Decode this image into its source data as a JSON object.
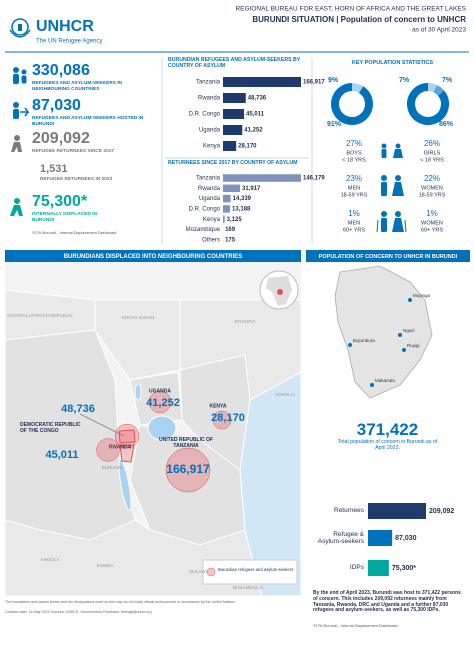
{
  "header": {
    "org": "UNHCR",
    "tagline": "The UN Refugee Agency",
    "bureau": "REGIONAL BUREAU FOR EAST, HORN OF AFRICA AND THE GREAT LAKES",
    "title": "BURUNDI SITUATION | Population of concern to UNHCR",
    "date": "as of 30 April 2023"
  },
  "kpis": [
    {
      "value": "330,086",
      "label": "REFUGEES AND ASYLUM-SEEKERS IN NEIGHBOURING COUNTRIES"
    },
    {
      "value": "87,030",
      "label": "REFUGEES AND ASYLUM-SEEKERS HOSTED IN BURUNDI"
    },
    {
      "value": "209,092",
      "label": "REFUGEE RETURNEES SINCE 2017"
    },
    {
      "value": "1,531",
      "label": "REFUGEE RETURNEES IN 2023"
    },
    {
      "value": "75,300*",
      "label": "INTERNALLY DISPLACED IN BURUNDI",
      "note": "*DTM Burundi – Internal Displacement Dashboard"
    }
  ],
  "asylum_chart": {
    "title": "BURUNDIAN REFUGEES AND ASYLUM-SEEKERS BY COUNTRY OF ASYLUM",
    "color": "#1f3a6e",
    "categories": [
      "Tanzania",
      "Rwanda",
      "D.R. Congo",
      "Uganda",
      "Kenya"
    ],
    "values": [
      166917,
      48736,
      45011,
      41252,
      28170
    ],
    "value_labels": [
      "166,917",
      "48,736",
      "45,011",
      "41,252",
      "28,170"
    ]
  },
  "returnees_chart": {
    "title": "RETURNEES SINCE 2017 BY COUNTRY OF ASYLUM",
    "color": "#7f93bd",
    "categories": [
      "Tanzania",
      "Rwanda",
      "Uganda",
      "D.R. Congo",
      "Kenya",
      "Mozambique",
      "Others"
    ],
    "values": [
      146179,
      31917,
      14339,
      13188,
      3125,
      169,
      175
    ],
    "value_labels": [
      "146,179",
      "31,917",
      "14,339",
      "13,188",
      "3,125",
      "169",
      "175"
    ]
  },
  "key_stats": {
    "title": "KEY POPULATION STATISTICS",
    "donuts": [
      {
        "values": [
          9,
          91
        ],
        "value_labels": [
          "9%",
          "91%"
        ],
        "colors": [
          "#a9d3f1",
          "#0072bc"
        ]
      },
      {
        "values": [
          7,
          7,
          86
        ],
        "value_labels": [
          "7%",
          "7%",
          "86%"
        ],
        "colors": [
          "#a9d3f1",
          "#5aa7dc",
          "#0072bc"
        ]
      }
    ],
    "demographics": [
      {
        "pct": "27%",
        "group": "BOYS",
        "age": "< 18 YRS"
      },
      {
        "pct": "26%",
        "group": "GIRLS",
        "age": "< 18 YRS"
      },
      {
        "pct": "23%",
        "group": "MEN",
        "age": "18-59 YRS"
      },
      {
        "pct": "22%",
        "group": "WOMEN",
        "age": "18-59 YRS"
      },
      {
        "pct": "1%",
        "group": "MEN",
        "age": "60+ YRS"
      },
      {
        "pct": "1%",
        "group": "WOMEN",
        "age": "60+ YRS"
      }
    ]
  },
  "map": {
    "title": "BURUNDIANS DISPLACED INTO NEIGHBOURING COUNTRIES",
    "countries": [
      "CENTRAL AFRICAN REPUBLIC",
      "SOUTH SUDAN",
      "ETHIOPIA",
      "SOMALIA",
      "BURUNDI",
      "ANGOLA",
      "ZAMBIA",
      "MALAWI",
      "MOZAMBIQUE"
    ],
    "points": [
      {
        "name": "UNITED REPUBLIC OF TANZANIA",
        "value": 166917,
        "value_label": "166,917"
      },
      {
        "name": "UGANDA",
        "value": 41252,
        "value_label": "41,252"
      },
      {
        "name": "KENYA",
        "value": 28170,
        "value_label": "28,170"
      },
      {
        "name": "RWANDA",
        "value": 48736,
        "value_label": "48,736"
      },
      {
        "name": "DEMOCRATIC REPUBLIC OF THE CONGO",
        "value": 45011,
        "value_label": "45,011"
      }
    ],
    "legend": "Burundian refugees and asylum-seekers"
  },
  "burundi": {
    "title": "POPULATION OF CONCERN TO UNHCR IN BURUNDI",
    "places": [
      "Muyinga",
      "Bujumbura",
      "Ngozi",
      "Ruyigi",
      "Makamba"
    ],
    "total": "371,422",
    "total_caption": "Total population of concern in Burundi as of April 2023.",
    "categories": [
      "Returnees",
      "Refugee & Asylum-seekers",
      "IDPs"
    ],
    "values": [
      209092,
      87030,
      75300
    ],
    "value_labels": [
      "209,092",
      "87,030",
      "75,300*"
    ],
    "colors": [
      "#1f3a6e",
      "#0072bc",
      "#00a99d"
    ],
    "summary": "By the end of April 2023, Burundi was host to 371,422 persons of concern. This includes 209,092 returnees mainly from Tanzania, Rwanda, DRC and Uganda and a further 87,030 refugees and asylum-seekers, as well as 75,300 IDPs.",
    "note": "*DTM Burundi – Internal Displacement Dashboard"
  },
  "footer": {
    "disclaimer": "The boundaries and names shown and the designations used on this map do not imply official endorsement or acceptance by the United Nations.",
    "credits": "Creation date: 16 May 2023  Sources: UNHCR, Governments  Feedback: rbehagl@unhcr.org"
  }
}
